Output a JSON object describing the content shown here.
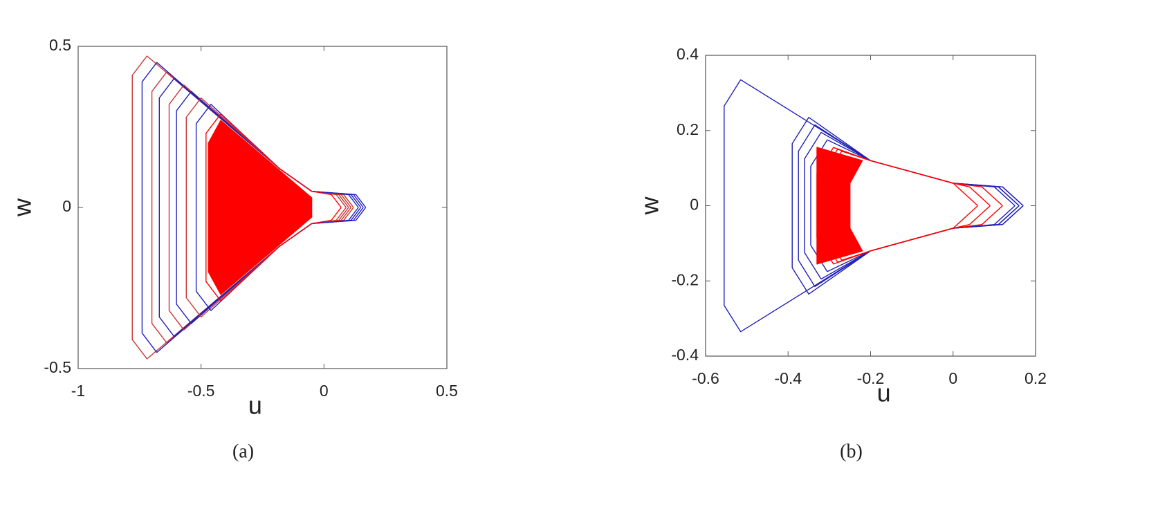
{
  "chart_data": [
    {
      "type": "line",
      "xlabel": "u",
      "ylabel": "w",
      "caption": "(a)",
      "xlim": [
        -1,
        0.5
      ],
      "ylim": [
        -0.5,
        0.5
      ],
      "xticks": [
        -1,
        -0.5,
        0,
        0.5
      ],
      "yticks": [
        -0.5,
        0,
        0.5
      ],
      "series": [
        {
          "color": "#cc3333",
          "x": [
            0.1,
            0.06,
            -0.05,
            -0.18,
            -0.72,
            -0.78,
            -0.78,
            -0.72,
            -0.18,
            -0.05,
            0.06,
            0.1
          ],
          "values": [
            0,
            0.04,
            0.05,
            0.12,
            0.47,
            0.41,
            -0.41,
            -0.47,
            -0.12,
            -0.05,
            -0.04,
            0
          ]
        },
        {
          "color": "#2020b8",
          "x": [
            0.16,
            0.12,
            -0.05,
            -0.18,
            -0.68,
            -0.74,
            -0.74,
            -0.68,
            -0.18,
            -0.05,
            0.12,
            0.16
          ],
          "values": [
            0,
            0.04,
            0.05,
            0.12,
            0.45,
            0.39,
            -0.39,
            -0.45,
            -0.12,
            -0.05,
            -0.04,
            0
          ]
        },
        {
          "color": "#cc3333",
          "x": [
            0.12,
            0.08,
            -0.05,
            -0.18,
            -0.64,
            -0.7,
            -0.7,
            -0.64,
            -0.18,
            -0.05,
            0.08,
            0.12
          ],
          "values": [
            0,
            0.04,
            0.05,
            0.12,
            0.42,
            0.36,
            -0.36,
            -0.42,
            -0.12,
            -0.05,
            -0.04,
            0
          ]
        },
        {
          "color": "#2020b8",
          "x": [
            0.15,
            0.11,
            -0.05,
            -0.18,
            -0.61,
            -0.67,
            -0.67,
            -0.61,
            -0.18,
            -0.05,
            0.11,
            0.15
          ],
          "values": [
            0,
            0.04,
            0.05,
            0.12,
            0.4,
            0.34,
            -0.34,
            -0.4,
            -0.12,
            -0.05,
            -0.04,
            0
          ]
        },
        {
          "color": "#cc3333",
          "x": [
            0.09,
            0.05,
            -0.05,
            -0.18,
            -0.57,
            -0.63,
            -0.63,
            -0.57,
            -0.18,
            -0.05,
            0.05,
            0.09
          ],
          "values": [
            0,
            0.04,
            0.05,
            0.12,
            0.38,
            0.32,
            -0.32,
            -0.38,
            -0.12,
            -0.05,
            -0.04,
            0
          ]
        },
        {
          "color": "#2020b8",
          "x": [
            0.14,
            0.1,
            -0.05,
            -0.18,
            -0.54,
            -0.6,
            -0.6,
            -0.54,
            -0.18,
            -0.05,
            0.1,
            0.14
          ],
          "values": [
            0,
            0.04,
            0.05,
            0.12,
            0.36,
            0.3,
            -0.3,
            -0.36,
            -0.12,
            -0.05,
            -0.04,
            0
          ]
        },
        {
          "color": "#cc3333",
          "x": [
            0.11,
            0.07,
            -0.05,
            -0.18,
            -0.5,
            -0.56,
            -0.56,
            -0.5,
            -0.18,
            -0.05,
            0.07,
            0.11
          ],
          "values": [
            0,
            0.04,
            0.05,
            0.12,
            0.34,
            0.28,
            -0.28,
            -0.34,
            -0.12,
            -0.05,
            -0.04,
            0
          ]
        },
        {
          "color": "#2020b8",
          "x": [
            0.17,
            0.13,
            -0.05,
            -0.18,
            -0.46,
            -0.52,
            -0.52,
            -0.46,
            -0.18,
            -0.05,
            0.13,
            0.17
          ],
          "values": [
            0,
            0.04,
            0.05,
            0.12,
            0.32,
            0.26,
            -0.26,
            -0.32,
            -0.12,
            -0.05,
            -0.04,
            0
          ]
        },
        {
          "color": "#ff0000",
          "x": [
            0.07,
            0.03,
            -0.05,
            -0.18,
            -0.42,
            -0.48,
            -0.48,
            -0.42,
            -0.18,
            -0.05,
            0.03,
            0.07
          ],
          "values": [
            0,
            0.04,
            0.05,
            0.12,
            0.29,
            0.23,
            -0.23,
            -0.29,
            -0.12,
            -0.05,
            -0.04,
            0
          ]
        },
        {
          "color": "#ff0000",
          "fill": true,
          "x": [
            -0.05,
            -0.42,
            -0.47,
            -0.47,
            -0.42,
            -0.05
          ],
          "values": [
            0.03,
            0.27,
            0.2,
            -0.2,
            -0.27,
            -0.03
          ]
        }
      ]
    },
    {
      "type": "line",
      "xlabel": "u",
      "ylabel": "w",
      "caption": "(b)",
      "xlim": [
        -0.6,
        0.2
      ],
      "ylim": [
        -0.4,
        0.4
      ],
      "xticks": [
        -0.6,
        -0.4,
        -0.2,
        0,
        0.2
      ],
      "yticks": [
        -0.4,
        -0.2,
        0,
        0.2,
        0.4
      ],
      "series": [
        {
          "color": "#2020b8",
          "x": [
            0.17,
            0.12,
            0,
            -0.2,
            -0.515,
            -0.555,
            -0.555,
            -0.515,
            -0.2,
            0,
            0.12,
            0.17
          ],
          "values": [
            0,
            0.05,
            0.06,
            0.12,
            0.335,
            0.265,
            -0.265,
            -0.335,
            -0.12,
            -0.06,
            -0.05,
            0
          ]
        },
        {
          "color": "#2020b8",
          "x": [
            0.16,
            0.11,
            0,
            -0.2,
            -0.35,
            -0.39,
            -0.39,
            -0.35,
            -0.2,
            0,
            0.11,
            0.16
          ],
          "values": [
            0,
            0.05,
            0.06,
            0.12,
            0.235,
            0.165,
            -0.165,
            -0.235,
            -0.12,
            -0.06,
            -0.05,
            0
          ]
        },
        {
          "color": "#2020b8",
          "x": [
            0.15,
            0.1,
            0,
            -0.2,
            -0.335,
            -0.375,
            -0.375,
            -0.335,
            -0.2,
            0,
            0.1,
            0.15
          ],
          "values": [
            0,
            0.05,
            0.06,
            0.12,
            0.215,
            0.145,
            -0.145,
            -0.215,
            -0.12,
            -0.06,
            -0.05,
            0
          ]
        },
        {
          "color": "#2020b8",
          "x": [
            0.17,
            0.12,
            0,
            -0.2,
            -0.32,
            -0.36,
            -0.36,
            -0.32,
            -0.2,
            0,
            0.12,
            0.17
          ],
          "values": [
            0,
            0.05,
            0.06,
            0.12,
            0.195,
            0.125,
            -0.125,
            -0.195,
            -0.12,
            -0.06,
            -0.05,
            0
          ]
        },
        {
          "color": "#2020b8",
          "x": [
            0.16,
            0.11,
            0,
            -0.2,
            -0.305,
            -0.345,
            -0.345,
            -0.305,
            -0.2,
            0,
            0.11,
            0.16
          ],
          "values": [
            0,
            0.05,
            0.06,
            0.12,
            0.175,
            0.105,
            -0.105,
            -0.175,
            -0.12,
            -0.06,
            -0.05,
            0
          ]
        },
        {
          "color": "#ff0000",
          "x": [
            0.12,
            0.07,
            0,
            -0.2,
            -0.29,
            -0.33,
            -0.33,
            -0.29,
            -0.2,
            0,
            0.07,
            0.12
          ],
          "values": [
            0,
            0.05,
            0.06,
            0.12,
            0.155,
            0.085,
            -0.085,
            -0.155,
            -0.12,
            -0.06,
            -0.05,
            0
          ]
        },
        {
          "color": "#ff0000",
          "x": [
            0.09,
            0.04,
            0,
            -0.2,
            -0.28,
            -0.32,
            -0.32,
            -0.28,
            -0.2,
            0,
            0.04,
            0.09
          ],
          "values": [
            0,
            0.05,
            0.06,
            0.12,
            0.15,
            0.08,
            -0.08,
            -0.15,
            -0.12,
            -0.06,
            -0.05,
            0
          ]
        },
        {
          "color": "#ff0000",
          "x": [
            0.06,
            0.01,
            0,
            -0.2,
            -0.27,
            -0.31,
            -0.31,
            -0.27,
            -0.2,
            0,
            0.01,
            0.06
          ],
          "values": [
            0,
            0.05,
            0.06,
            0.12,
            0.145,
            0.075,
            -0.075,
            -0.145,
            -0.12,
            -0.06,
            -0.05,
            0
          ]
        },
        {
          "color": "#ff0000",
          "fill": true,
          "x": [
            -0.33,
            -0.22,
            -0.25,
            -0.25,
            -0.22,
            -0.33
          ],
          "values": [
            0.155,
            0.12,
            0.06,
            -0.06,
            -0.12,
            -0.155
          ]
        }
      ]
    }
  ]
}
